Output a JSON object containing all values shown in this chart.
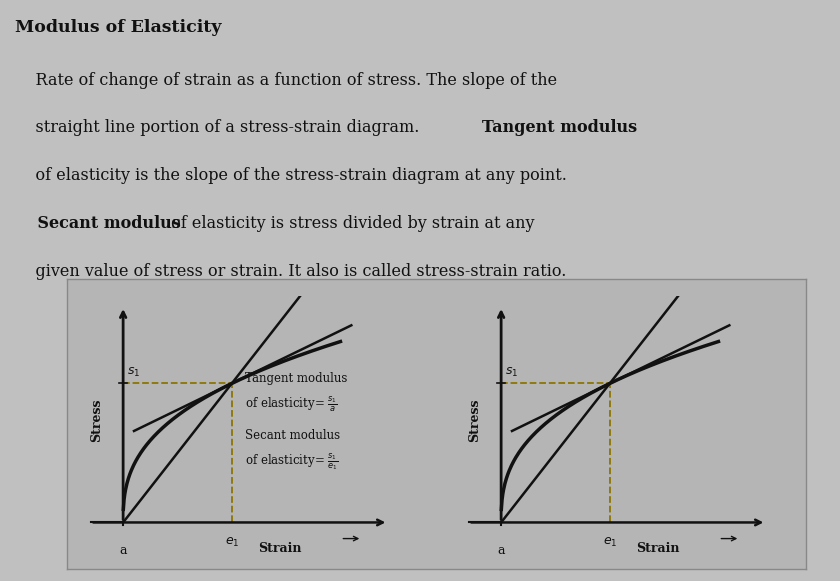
{
  "bg_color": "#c0c0c0",
  "diagram_bg": "#b8b8b8",
  "curve_color": "#111111",
  "axis_color": "#111111",
  "dashed_color": "#8B7500",
  "text_color": "#111111",
  "title": "Modulus of Elasticity",
  "line1": "    Rate of change of strain as a function of stress. The slope of the",
  "line2_plain": "    straight line portion of a stress-strain diagram. ",
  "line2_bold": "Tangent modulus",
  "line3": "    of elasticity is the slope of the stress-strain diagram at any point.",
  "line4_bold": "    Secant modulus",
  "line4_plain": " of elasticity is stress divided by strain at any",
  "line5": "    given value of stress or strain. It also is called stress-strain ratio.",
  "text_fontsize": 11.5,
  "title_fontsize": 12.5
}
